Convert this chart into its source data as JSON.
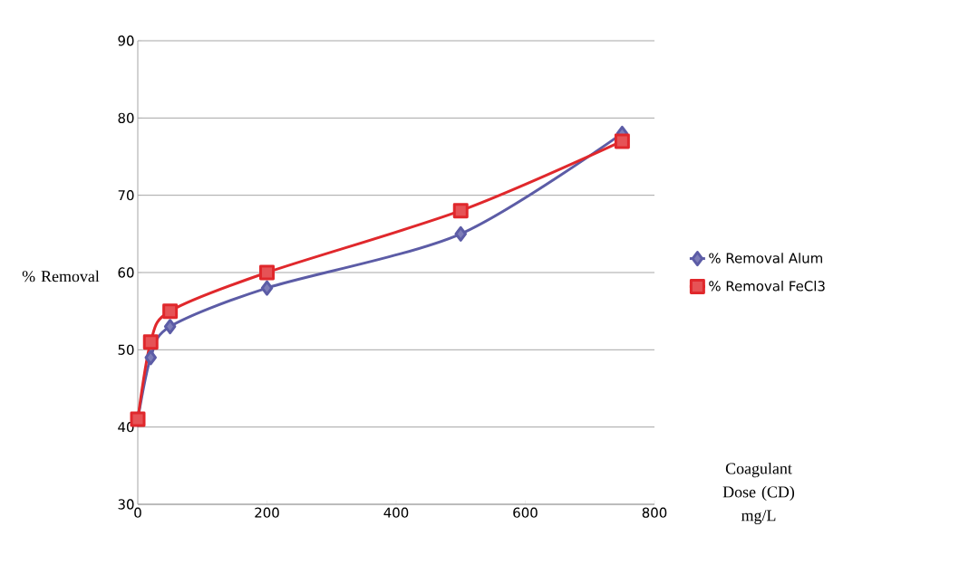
{
  "chart_data": {
    "type": "line",
    "ylabel": "% Removal",
    "xlabel": "Coagulant Dose (CD) mg/L",
    "x": [
      0,
      20,
      50,
      200,
      500,
      750
    ],
    "series": [
      {
        "name": "% Removal Alum",
        "color": "#5c5ca6",
        "marker": "diamond",
        "values": [
          41,
          49,
          53,
          58,
          65,
          78
        ]
      },
      {
        "name": "% Removal FeCl3",
        "color": "#e0282c",
        "marker": "square",
        "values": [
          41,
          51,
          55,
          60,
          68,
          77
        ]
      }
    ],
    "xlim": [
      0,
      800
    ],
    "ylim": [
      30,
      90
    ],
    "xticks": [
      0,
      200,
      400,
      600,
      800
    ],
    "yticks": [
      30,
      40,
      50,
      60,
      70,
      80,
      90
    ],
    "grid": "y",
    "legend": "right",
    "line_style": "solid"
  }
}
